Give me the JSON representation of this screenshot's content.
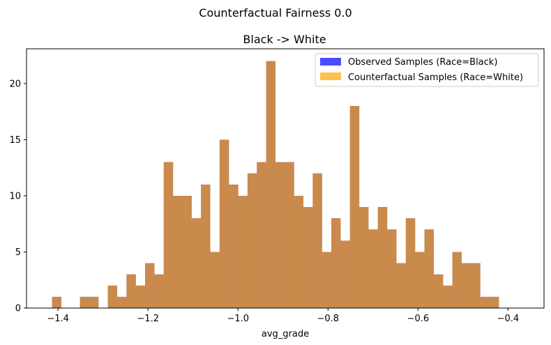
{
  "figure": {
    "suptitle": "Counterfactual Fairness 0.0"
  },
  "chart_data": {
    "type": "bar",
    "title": "Black -> White",
    "xlabel": "avg_grade",
    "ylabel": "",
    "xlim": [
      -1.47,
      -0.32
    ],
    "ylim": [
      0,
      23.1
    ],
    "xticks": [
      -1.4,
      -1.2,
      -1.0,
      -0.8,
      -0.6,
      -0.4
    ],
    "xtick_labels": [
      "−1.4",
      "−1.2",
      "−1.0",
      "−0.8",
      "−0.6",
      "−0.4"
    ],
    "yticks": [
      0,
      5,
      10,
      15,
      20
    ],
    "ytick_labels": [
      "0",
      "5",
      "10",
      "15",
      "20"
    ],
    "grid": false,
    "legend_position": "top-right",
    "bin_start": -1.4133,
    "bin_width": 0.02069,
    "series": [
      {
        "name": "Observed Samples (Race=Black)",
        "color": "#0000ff",
        "alpha": 0.7,
        "counts": [
          1,
          0,
          0,
          1,
          1,
          0,
          2,
          1,
          3,
          2,
          4,
          3,
          13,
          10,
          10,
          8,
          11,
          5,
          15,
          11,
          10,
          12,
          13,
          22,
          13,
          13,
          10,
          9,
          12,
          5,
          8,
          6,
          18,
          9,
          7,
          9,
          7,
          4,
          8,
          5,
          7,
          3,
          2,
          5,
          4,
          4,
          1,
          1
        ]
      },
      {
        "name": "Counterfactual Samples (Race=White)",
        "color": "#ffa500",
        "alpha": 0.7,
        "counts": [
          1,
          0,
          0,
          1,
          1,
          0,
          2,
          1,
          3,
          2,
          4,
          3,
          13,
          10,
          10,
          8,
          11,
          5,
          15,
          11,
          10,
          12,
          13,
          22,
          13,
          13,
          10,
          9,
          12,
          5,
          8,
          6,
          18,
          9,
          7,
          9,
          7,
          4,
          8,
          5,
          7,
          3,
          2,
          5,
          4,
          4,
          1,
          1
        ]
      }
    ]
  }
}
